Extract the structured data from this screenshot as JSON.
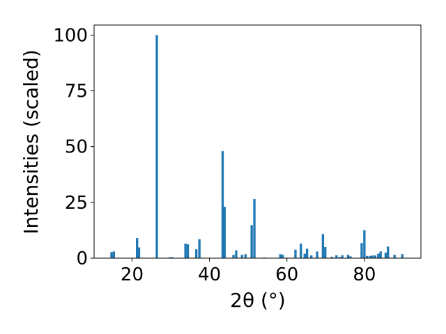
{
  "chart_data": {
    "type": "bar",
    "xlabel": "2θ (°)",
    "ylabel": "Intensities (scaled)",
    "xlim": [
      10.2,
      94.6
    ],
    "ylim": [
      0,
      104.5
    ],
    "xticks": [
      20,
      40,
      60,
      80
    ],
    "yticks": [
      0,
      25,
      50,
      75,
      100
    ],
    "bar_width": 0.6,
    "bar_color": "#1f77b4",
    "grid": false,
    "points": [
      {
        "x": 14.7,
        "y": 2.7
      },
      {
        "x": 15.3,
        "y": 3.0
      },
      {
        "x": 21.3,
        "y": 9.0
      },
      {
        "x": 21.8,
        "y": 4.8
      },
      {
        "x": 26.4,
        "y": 100
      },
      {
        "x": 29.8,
        "y": 0.4
      },
      {
        "x": 30.4,
        "y": 0.4
      },
      {
        "x": 33.8,
        "y": 6.5
      },
      {
        "x": 34.4,
        "y": 6.2
      },
      {
        "x": 36.6,
        "y": 4.0
      },
      {
        "x": 37.4,
        "y": 8.5
      },
      {
        "x": 43.4,
        "y": 48.0
      },
      {
        "x": 43.9,
        "y": 23.0
      },
      {
        "x": 46.2,
        "y": 1.5
      },
      {
        "x": 46.9,
        "y": 3.5
      },
      {
        "x": 48.4,
        "y": 1.5
      },
      {
        "x": 49.3,
        "y": 1.8
      },
      {
        "x": 50.9,
        "y": 14.8
      },
      {
        "x": 51.6,
        "y": 26.5
      },
      {
        "x": 54.2,
        "y": 0.3
      },
      {
        "x": 58.3,
        "y": 1.8
      },
      {
        "x": 58.9,
        "y": 1.5
      },
      {
        "x": 62.2,
        "y": 3.8
      },
      {
        "x": 63.6,
        "y": 6.5
      },
      {
        "x": 64.6,
        "y": 2.0
      },
      {
        "x": 65.2,
        "y": 4.2
      },
      {
        "x": 66.3,
        "y": 1.2
      },
      {
        "x": 67.8,
        "y": 3.0
      },
      {
        "x": 69.3,
        "y": 10.8
      },
      {
        "x": 69.9,
        "y": 5.0
      },
      {
        "x": 71.6,
        "y": 0.6
      },
      {
        "x": 72.8,
        "y": 1.3
      },
      {
        "x": 73.6,
        "y": 0.5
      },
      {
        "x": 74.3,
        "y": 1.3
      },
      {
        "x": 75.8,
        "y": 1.5
      },
      {
        "x": 76.4,
        "y": 0.8
      },
      {
        "x": 79.3,
        "y": 6.8
      },
      {
        "x": 80.0,
        "y": 12.5
      },
      {
        "x": 80.7,
        "y": 1.0
      },
      {
        "x": 81.5,
        "y": 1.0
      },
      {
        "x": 82.1,
        "y": 1.2
      },
      {
        "x": 82.8,
        "y": 1.2
      },
      {
        "x": 83.6,
        "y": 2.0
      },
      {
        "x": 84.2,
        "y": 3.0
      },
      {
        "x": 85.5,
        "y": 2.5
      },
      {
        "x": 86.1,
        "y": 5.2
      },
      {
        "x": 87.8,
        "y": 1.5
      },
      {
        "x": 89.8,
        "y": 1.8
      }
    ]
  }
}
